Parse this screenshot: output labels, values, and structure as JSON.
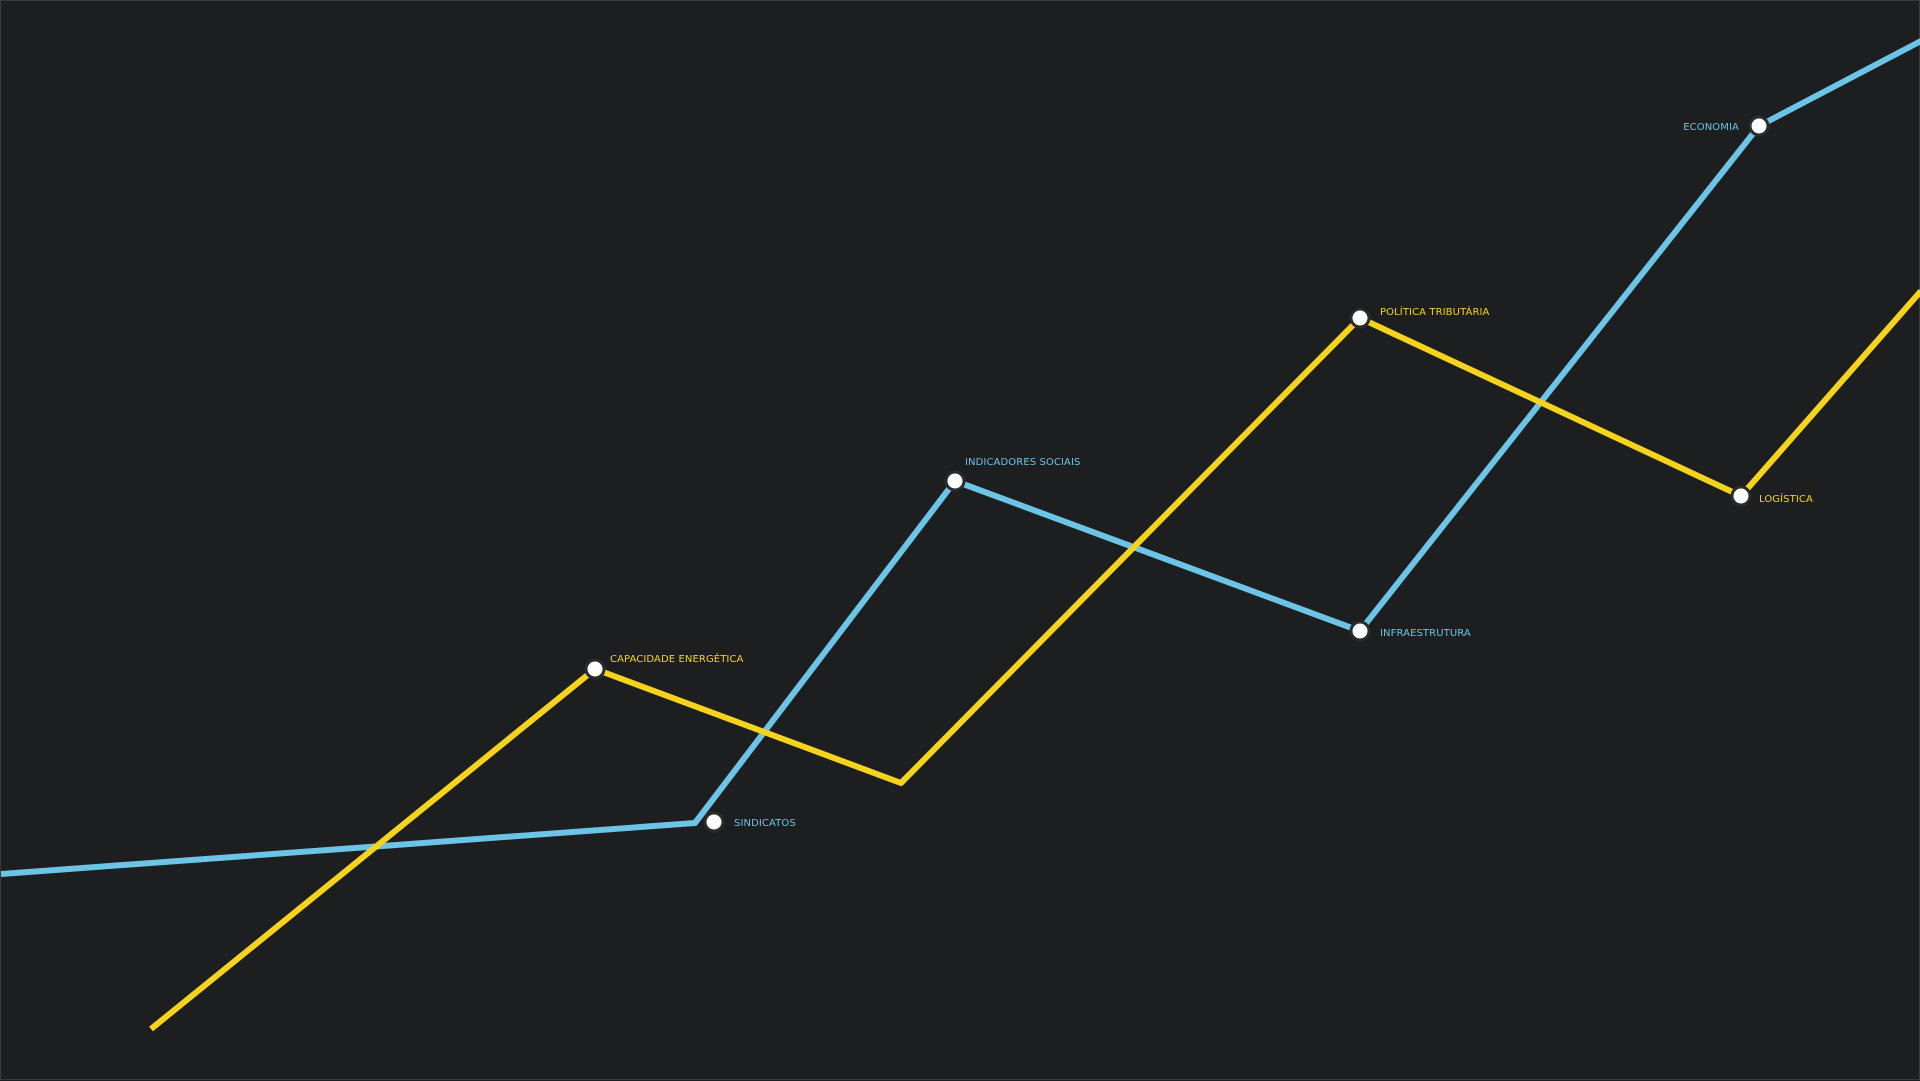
{
  "colors": {
    "background": "#1d1e20",
    "line_blue": "#6cc4e6",
    "line_yellow": "#f6d31c",
    "station_fill": "#ffffff",
    "station_stroke": "#2a2b2d"
  },
  "lines": {
    "blue": {
      "stations": [
        {
          "label": "SINDICATOS",
          "icon": "station-marker"
        },
        {
          "label": "INDICADORES SOCIAIS",
          "icon": "station-marker"
        },
        {
          "label": "INFRAESTRUTURA",
          "icon": "station-marker"
        },
        {
          "label": "ECONOMIA",
          "icon": "station-marker"
        }
      ]
    },
    "yellow": {
      "stations": [
        {
          "label": "CAPACIDADE ENERGÉTICA",
          "icon": "station-marker"
        },
        {
          "label": "POLÍTICA TRIBUTÁRIA",
          "icon": "station-marker"
        },
        {
          "label": "LOGÍSTICA",
          "icon": "station-marker"
        }
      ]
    }
  }
}
